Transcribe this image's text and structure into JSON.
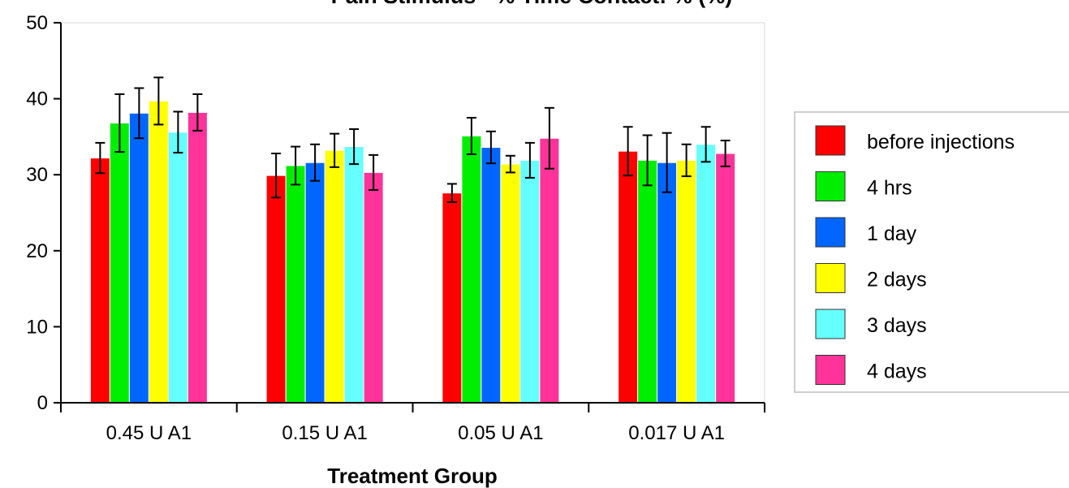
{
  "chart_data": {
    "type": "bar",
    "title": "Pain Stimulus - % Time Contact: % (%)",
    "xlabel": "Treatment Group",
    "ylabel": "",
    "ylim": [
      0,
      50
    ],
    "yticks": [
      0,
      10,
      20,
      30,
      40,
      50
    ],
    "grid": false,
    "legend_position": "right",
    "error_bars": true,
    "categories": [
      "0.45 U A1",
      "0.15 U A1",
      "0.05 U A1",
      "0.017 U A1"
    ],
    "series": [
      {
        "name": "before injections",
        "color": "#ff0000",
        "values": [
          32.2,
          29.9,
          27.6,
          33.1
        ],
        "errors": [
          2.0,
          2.9,
          1.2,
          3.2
        ]
      },
      {
        "name": "4 hrs",
        "color": "#00ee00",
        "values": [
          36.8,
          31.2,
          35.1,
          31.9
        ],
        "errors": [
          3.8,
          2.5,
          2.4,
          3.3
        ]
      },
      {
        "name": "1 day",
        "color": "#0066ff",
        "values": [
          38.1,
          31.6,
          33.6,
          31.6
        ],
        "errors": [
          3.3,
          2.4,
          2.1,
          3.9
        ]
      },
      {
        "name": "2 days",
        "color": "#ffff00",
        "values": [
          39.7,
          33.2,
          31.4,
          31.9
        ],
        "errors": [
          3.1,
          2.2,
          1.1,
          2.1
        ]
      },
      {
        "name": "3 days",
        "color": "#66ffff",
        "values": [
          35.6,
          33.7,
          31.9,
          34.0
        ],
        "errors": [
          2.7,
          2.3,
          2.3,
          2.3
        ]
      },
      {
        "name": "4 days",
        "color": "#ff3399",
        "values": [
          38.2,
          30.3,
          34.8,
          32.8
        ],
        "errors": [
          2.4,
          2.3,
          4.0,
          1.7
        ]
      }
    ]
  }
}
